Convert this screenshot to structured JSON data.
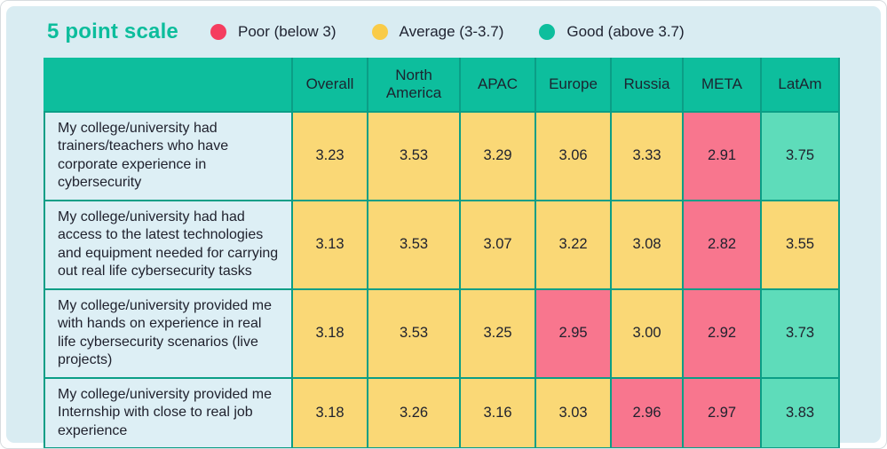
{
  "title": "5 point scale",
  "legend": [
    {
      "label": "Poor (below 3)",
      "color": "#f53d5f"
    },
    {
      "label": "Average (3-3.7)",
      "color": "#f9cb48"
    },
    {
      "label": "Good (above 3.7)",
      "color": "#0dbe9d"
    }
  ],
  "colors": {
    "panel_bg": "#d9ecf2",
    "header_bg": "#0dbe9d",
    "question_bg": "#ddeff5",
    "poor_cell": "#f8768e",
    "average_cell": "#fad876",
    "good_cell": "#5edcba",
    "border": "#0b9e86",
    "title": "#0cbd9c",
    "text": "#20222e"
  },
  "chart_data": {
    "type": "heatmap",
    "title": "5 point scale",
    "legend_entries": [
      "Poor (below 3)",
      "Average (3-3.7)",
      "Good (above 3.7)"
    ],
    "thresholds": {
      "poor_below": 3.0,
      "good_above": 3.7
    },
    "scale_max": 5,
    "columns": [
      "Overall",
      "North America",
      "APAC",
      "Europe",
      "Russia",
      "META",
      "LatAm"
    ],
    "rows": [
      {
        "question": "My college/university had trainers/teachers who have corporate experience in cybersecurity",
        "values": [
          "3.23",
          "3.53",
          "3.29",
          "3.06",
          "3.33",
          "2.91",
          "3.75"
        ]
      },
      {
        "question": "My college/university had had access to the latest technologies and equipment needed for carrying out real life cybersecurity tasks",
        "values": [
          "3.13",
          "3.53",
          "3.07",
          "3.22",
          "3.08",
          "2.82",
          "3.55"
        ]
      },
      {
        "question": "My college/university provided me with hands on experience in real life cybersecurity scenarios (live projects)",
        "values": [
          "3.18",
          "3.53",
          "3.25",
          "2.95",
          "3.00",
          "2.92",
          "3.73"
        ]
      },
      {
        "question": "My college/university provided me Internship with close to real job experience",
        "values": [
          "3.18",
          "3.26",
          "3.16",
          "3.03",
          "2.96",
          "2.97",
          "3.83"
        ]
      }
    ]
  }
}
